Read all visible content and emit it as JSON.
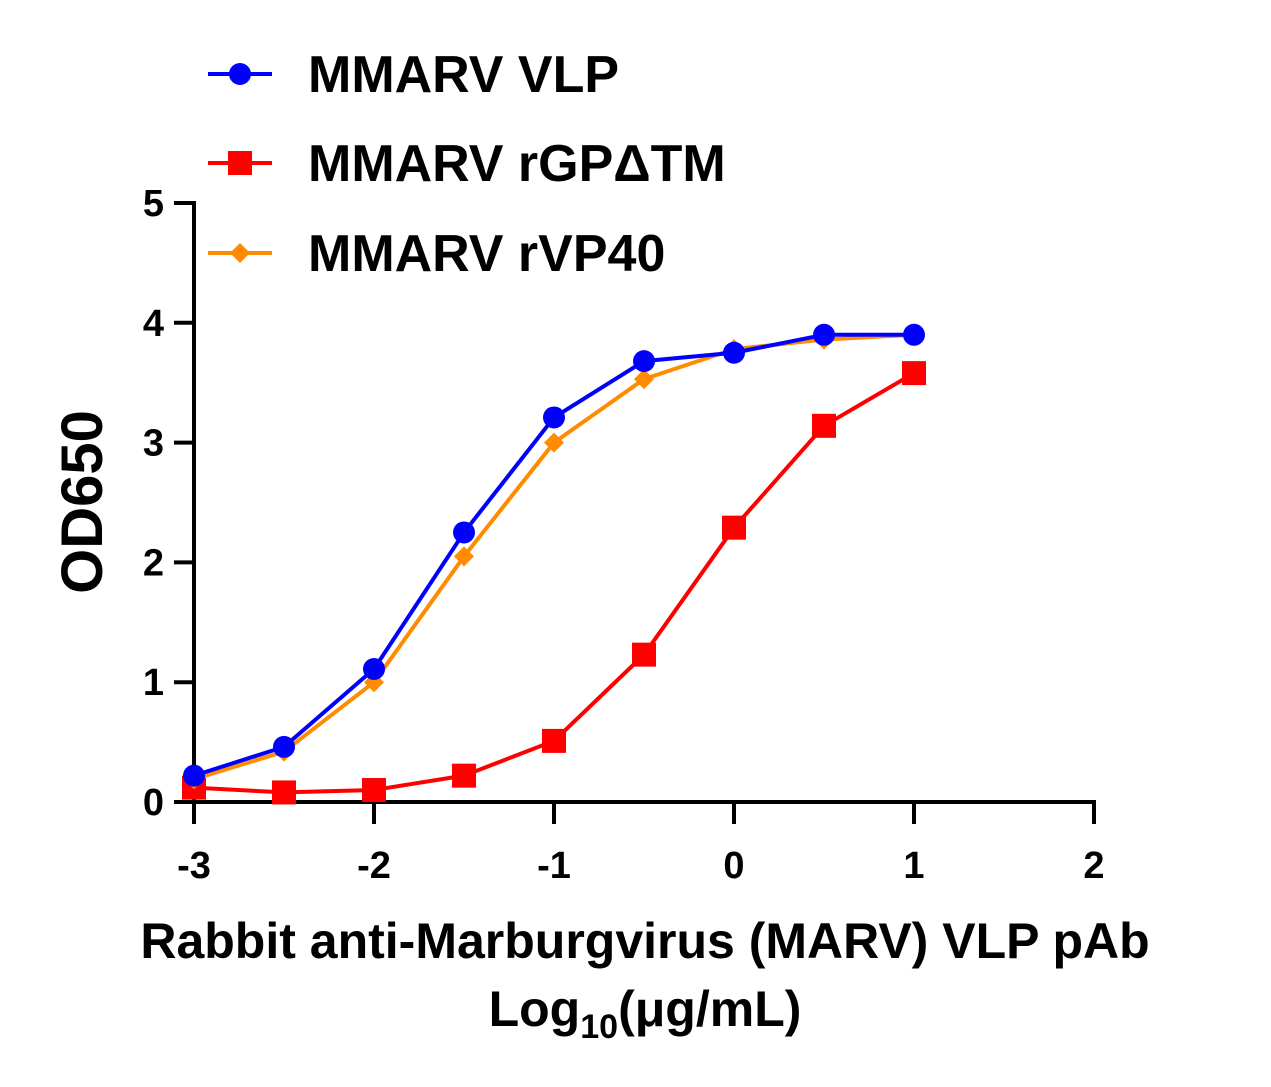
{
  "chart_data": {
    "type": "line",
    "xlabel_line1": "Rabbit anti-Marburgvirus (MARV) VLP pAb",
    "xlabel_prefix": "Log",
    "xlabel_sub": "10",
    "xlabel_suffix": "(μg/mL)",
    "ylabel": "OD650",
    "xlim": [
      -3,
      2
    ],
    "ylim": [
      0,
      5
    ],
    "xticks": [
      -3,
      -2,
      -1,
      0,
      1,
      2
    ],
    "yticks": [
      0,
      1,
      2,
      3,
      4,
      5
    ],
    "grid": false,
    "legend_position": "top-left",
    "series": [
      {
        "name": "MMARV VLP",
        "color": "#0000ff",
        "marker": "circle",
        "x": [
          -3,
          -2.5,
          -2,
          -1.5,
          -1,
          -0.5,
          0,
          0.5,
          1
        ],
        "y": [
          0.22,
          0.46,
          1.11,
          2.25,
          3.21,
          3.68,
          3.75,
          3.9,
          3.9
        ]
      },
      {
        "name": "MMARV rGPΔTM",
        "color": "#ff0000",
        "marker": "square",
        "x": [
          -3,
          -2.5,
          -2,
          -1.5,
          -1,
          -0.5,
          0,
          0.5,
          1
        ],
        "y": [
          0.12,
          0.08,
          0.1,
          0.22,
          0.51,
          1.23,
          2.29,
          3.14,
          3.58
        ]
      },
      {
        "name": "MMARV rVP40",
        "color": "#ff8c00",
        "marker": "diamond",
        "x": [
          -3,
          -2.5,
          -2,
          -1.5,
          -1,
          -0.5,
          0,
          0.5,
          1
        ],
        "y": [
          0.19,
          0.42,
          1.0,
          2.05,
          3.0,
          3.53,
          3.78,
          3.86,
          3.9
        ]
      }
    ]
  }
}
